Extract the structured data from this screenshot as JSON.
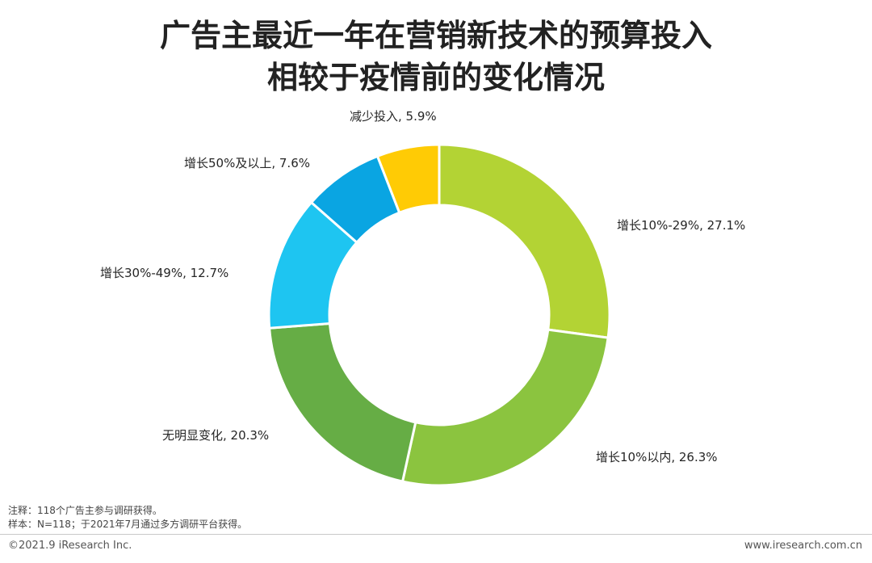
{
  "title_line1": "广告主最近一年在营销新技术的预算投入",
  "title_line2": "相较于疫情前的变化情况",
  "chart_data": {
    "type": "pie",
    "donut": true,
    "legend": "none",
    "slices": [
      {
        "label": "增长10%-29%",
        "value": 27.1,
        "value_text": "27.1%",
        "color": "#B3D334"
      },
      {
        "label": "增长10%以内",
        "value": 26.3,
        "value_text": "26.3%",
        "color": "#8BC43F"
      },
      {
        "label": "无明显变化",
        "value": 20.3,
        "value_text": "20.3%",
        "color": "#66AD45"
      },
      {
        "label": "增长30%-49%",
        "value": 12.7,
        "value_text": "12.7%",
        "color": "#1EC5F1"
      },
      {
        "label": "增长50%及以上",
        "value": 7.6,
        "value_text": "7.6%",
        "color": "#0AA5E2"
      },
      {
        "label": "减少投入",
        "value": 5.9,
        "value_text": "5.9%",
        "color": "#FFCB05"
      }
    ]
  },
  "note1": "注释：118个广告主参与调研获得。",
  "note2": "样本：N=118；于2021年7月通过多方调研平台获得。",
  "copyright": "©2021.9 iResearch Inc.",
  "website": "www.iresearch.com.cn"
}
